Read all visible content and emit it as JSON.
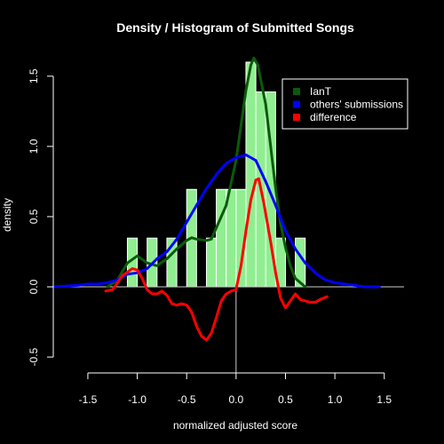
{
  "chart_data": {
    "type": "histogram+line",
    "title": "Density / Histogram of Submitted Songs",
    "xlabel": "normalized adjusted score",
    "ylabel": "density",
    "xlim": [
      -1.85,
      1.7
    ],
    "ylim": [
      -0.55,
      1.6
    ],
    "x_ticks": [
      -1.5,
      -1.0,
      -0.5,
      0.0,
      0.5,
      1.0,
      1.5
    ],
    "x_tick_labels": [
      "-1.5",
      "-1.0",
      "-0.5",
      "0.0",
      "0.5",
      "1.0",
      "1.5"
    ],
    "y_ticks": [
      -0.5,
      0.0,
      0.5,
      1.0,
      1.5
    ],
    "y_tick_labels": [
      "-0.5",
      "0.0",
      "0.5",
      "1.0",
      "1.5"
    ],
    "legend_position": "top-right",
    "colors": {
      "background": "#000000",
      "histogram": "#90EE90",
      "axes": "#ffffff"
    },
    "histogram": {
      "bin_width": 0.1,
      "bins": [
        {
          "x0": -1.1,
          "x1": -1.0,
          "density": 0.347
        },
        {
          "x0": -0.9,
          "x1": -0.8,
          "density": 0.347
        },
        {
          "x0": -0.7,
          "x1": -0.6,
          "density": 0.347
        },
        {
          "x0": -0.5,
          "x1": -0.4,
          "density": 0.694
        },
        {
          "x0": -0.3,
          "x1": -0.2,
          "density": 0.347
        },
        {
          "x0": -0.2,
          "x1": -0.1,
          "density": 0.694
        },
        {
          "x0": -0.1,
          "x1": 0.0,
          "density": 0.694
        },
        {
          "x0": 0.0,
          "x1": 0.1,
          "density": 0.694
        },
        {
          "x0": 0.1,
          "x1": 0.2,
          "density": 1.6
        },
        {
          "x0": 0.2,
          "x1": 0.3,
          "density": 1.388
        },
        {
          "x0": 0.3,
          "x1": 0.4,
          "density": 1.388
        },
        {
          "x0": 0.4,
          "x1": 0.5,
          "density": 0.347
        },
        {
          "x0": 0.6,
          "x1": 0.7,
          "density": 0.347
        }
      ]
    },
    "series": [
      {
        "name": "IanT",
        "color": "#0b5a0b",
        "points": [
          [
            -1.3,
            0.0
          ],
          [
            -1.2,
            0.05
          ],
          [
            -1.1,
            0.17
          ],
          [
            -1.0,
            0.22
          ],
          [
            -0.9,
            0.17
          ],
          [
            -0.8,
            0.15
          ],
          [
            -0.7,
            0.2
          ],
          [
            -0.6,
            0.27
          ],
          [
            -0.5,
            0.33
          ],
          [
            -0.45,
            0.35
          ],
          [
            -0.4,
            0.34
          ],
          [
            -0.3,
            0.33
          ],
          [
            -0.25,
            0.34
          ],
          [
            -0.2,
            0.42
          ],
          [
            -0.1,
            0.58
          ],
          [
            0.0,
            0.9
          ],
          [
            0.05,
            1.15
          ],
          [
            0.1,
            1.4
          ],
          [
            0.15,
            1.58
          ],
          [
            0.18,
            1.63
          ],
          [
            0.22,
            1.58
          ],
          [
            0.3,
            1.3
          ],
          [
            0.35,
            1.0
          ],
          [
            0.4,
            0.7
          ],
          [
            0.45,
            0.45
          ],
          [
            0.5,
            0.28
          ],
          [
            0.55,
            0.15
          ],
          [
            0.6,
            0.06
          ],
          [
            0.65,
            0.03
          ],
          [
            0.7,
            0.0
          ]
        ]
      },
      {
        "name": "others' submissions",
        "color": "#0000ff",
        "points": [
          [
            -1.85,
            0.0
          ],
          [
            -1.6,
            0.01
          ],
          [
            -1.5,
            0.02
          ],
          [
            -1.4,
            0.02
          ],
          [
            -1.3,
            0.03
          ],
          [
            -1.2,
            0.05
          ],
          [
            -1.1,
            0.09
          ],
          [
            -1.0,
            0.1
          ],
          [
            -0.9,
            0.13
          ],
          [
            -0.8,
            0.2
          ],
          [
            -0.7,
            0.25
          ],
          [
            -0.6,
            0.34
          ],
          [
            -0.5,
            0.46
          ],
          [
            -0.4,
            0.58
          ],
          [
            -0.3,
            0.7
          ],
          [
            -0.2,
            0.8
          ],
          [
            -0.1,
            0.88
          ],
          [
            0.0,
            0.92
          ],
          [
            0.1,
            0.94
          ],
          [
            0.15,
            0.92
          ],
          [
            0.2,
            0.9
          ],
          [
            0.3,
            0.75
          ],
          [
            0.4,
            0.58
          ],
          [
            0.5,
            0.4
          ],
          [
            0.6,
            0.27
          ],
          [
            0.7,
            0.17
          ],
          [
            0.8,
            0.1
          ],
          [
            0.9,
            0.05
          ],
          [
            1.0,
            0.03
          ],
          [
            1.1,
            0.02
          ],
          [
            1.2,
            0.01
          ],
          [
            1.3,
            0.0
          ],
          [
            1.45,
            0.0
          ]
        ]
      },
      {
        "name": "difference",
        "color": "#ff0000",
        "points": [
          [
            -1.32,
            -0.03
          ],
          [
            -1.25,
            -0.02
          ],
          [
            -1.15,
            0.08
          ],
          [
            -1.05,
            0.13
          ],
          [
            -1.0,
            0.12
          ],
          [
            -0.95,
            0.06
          ],
          [
            -0.9,
            -0.02
          ],
          [
            -0.85,
            -0.05
          ],
          [
            -0.8,
            -0.05
          ],
          [
            -0.75,
            -0.03
          ],
          [
            -0.7,
            -0.06
          ],
          [
            -0.65,
            -0.12
          ],
          [
            -0.6,
            -0.13
          ],
          [
            -0.55,
            -0.12
          ],
          [
            -0.5,
            -0.13
          ],
          [
            -0.45,
            -0.18
          ],
          [
            -0.4,
            -0.28
          ],
          [
            -0.35,
            -0.35
          ],
          [
            -0.3,
            -0.38
          ],
          [
            -0.25,
            -0.33
          ],
          [
            -0.2,
            -0.22
          ],
          [
            -0.15,
            -0.1
          ],
          [
            -0.1,
            -0.05
          ],
          [
            -0.05,
            -0.03
          ],
          [
            0.0,
            -0.02
          ],
          [
            0.05,
            0.15
          ],
          [
            0.1,
            0.4
          ],
          [
            0.15,
            0.62
          ],
          [
            0.2,
            0.76
          ],
          [
            0.23,
            0.77
          ],
          [
            0.28,
            0.6
          ],
          [
            0.35,
            0.32
          ],
          [
            0.4,
            0.1
          ],
          [
            0.45,
            -0.08
          ],
          [
            0.5,
            -0.15
          ],
          [
            0.55,
            -0.1
          ],
          [
            0.6,
            -0.05
          ],
          [
            0.65,
            -0.09
          ],
          [
            0.7,
            -0.1
          ],
          [
            0.75,
            -0.11
          ],
          [
            0.8,
            -0.11
          ],
          [
            0.85,
            -0.09
          ],
          [
            0.92,
            -0.07
          ]
        ]
      }
    ]
  }
}
